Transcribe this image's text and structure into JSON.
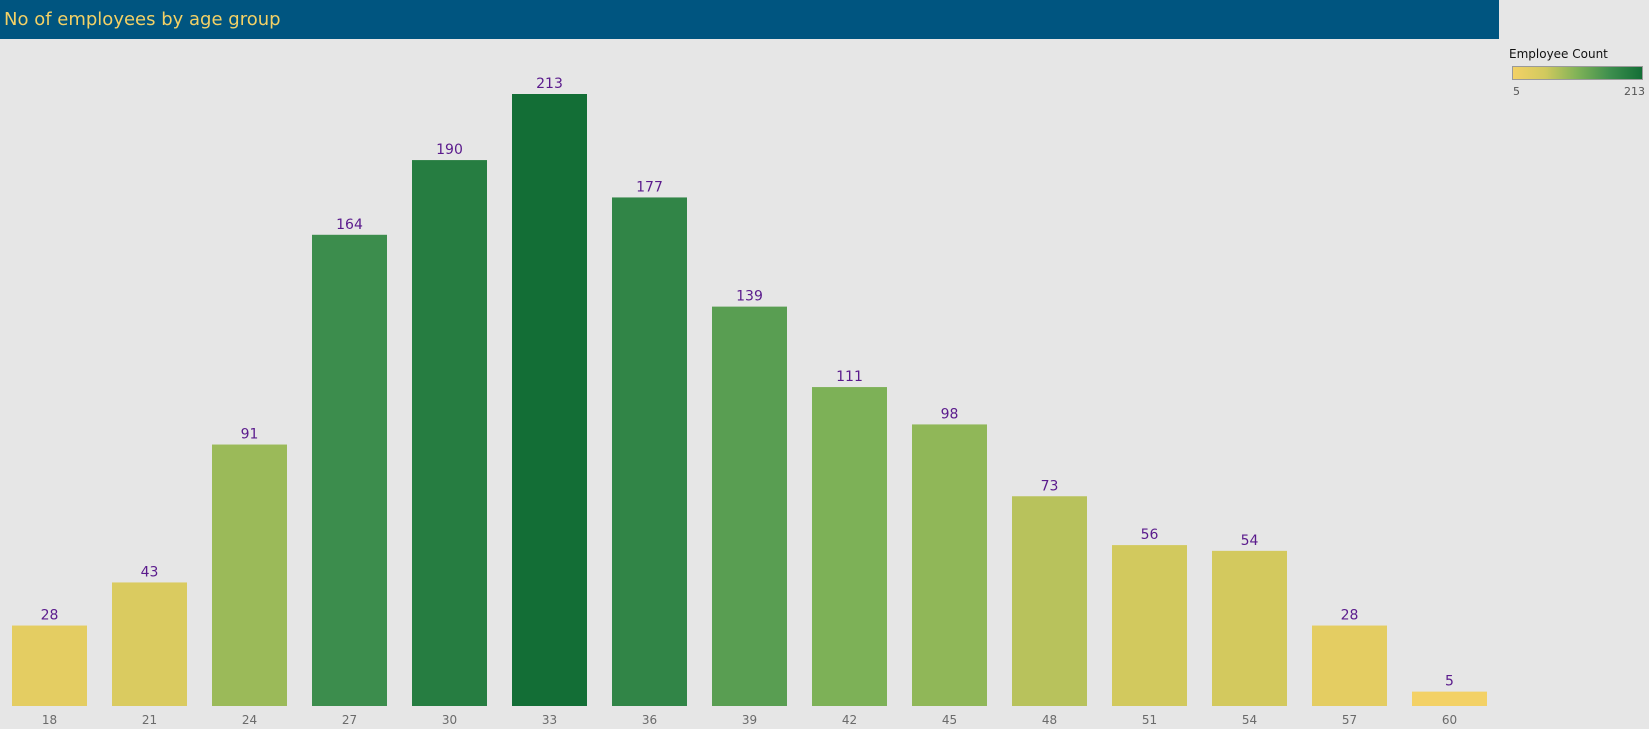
{
  "chart_data": {
    "type": "bar",
    "title": "No of employees by age group",
    "categories": [
      "18",
      "21",
      "24",
      "27",
      "30",
      "33",
      "36",
      "39",
      "42",
      "45",
      "48",
      "51",
      "54",
      "57",
      "60"
    ],
    "values": [
      28,
      43,
      91,
      164,
      190,
      213,
      177,
      139,
      111,
      98,
      73,
      56,
      54,
      28,
      5
    ],
    "xlabel": "",
    "ylabel": "",
    "ylim": [
      0,
      213
    ],
    "grid": false,
    "data_labels": true,
    "label_color": "#5a1a8c",
    "color_scale": {
      "title": "Employee Count",
      "min": 5,
      "max": 213,
      "min_label": "5",
      "max_label": "213",
      "colors": [
        "#f3d166",
        "#d1c95e",
        "#7fb257",
        "#3e8f4e",
        "#136e36"
      ]
    },
    "legend_position": "top-right"
  },
  "theme": {
    "background": "#e6e6e6",
    "title_bar": "#005580",
    "title_color": "#f3d166"
  }
}
